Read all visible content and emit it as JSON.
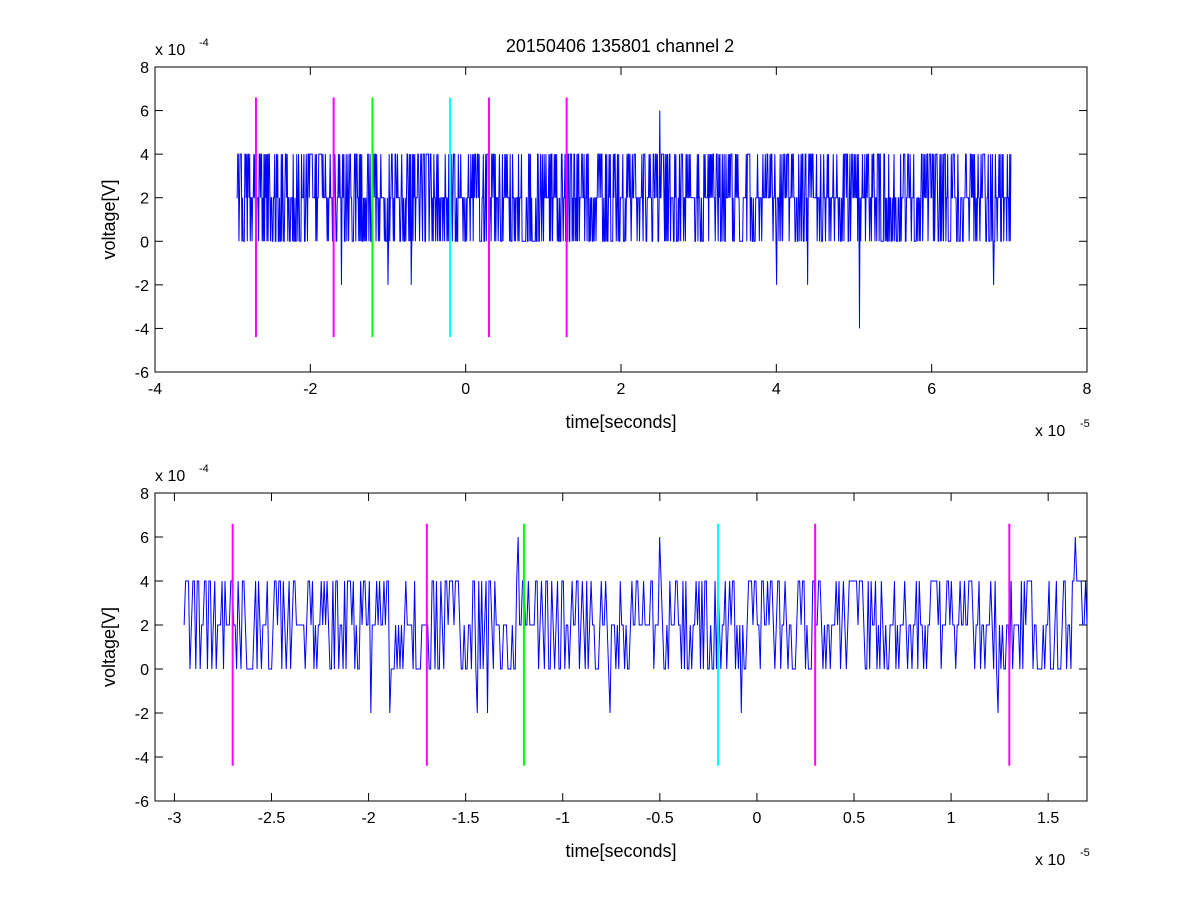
{
  "figure": {
    "title": "20150406 135801 channel 2"
  },
  "chart_data": [
    {
      "type": "line",
      "title": "20150406 135801 channel 2",
      "xlabel": "time[seconds]",
      "ylabel": "voltage[V]",
      "x_multiplier_label": "x 10",
      "x_multiplier_exponent": "-5",
      "y_multiplier_label": "x 10",
      "y_multiplier_exponent": "-4",
      "x_scale": 1e-05,
      "y_scale": 0.0001,
      "xlim": [
        -4,
        8
      ],
      "ylim": [
        -6,
        8
      ],
      "xticks": [
        -4,
        -2,
        0,
        2,
        4,
        6,
        8
      ],
      "xtick_labels": [
        "-4",
        "-2",
        "0",
        "2",
        "4",
        "6",
        "8"
      ],
      "yticks": [
        -6,
        -4,
        -2,
        0,
        2,
        4,
        6,
        8
      ],
      "ytick_labels": [
        "-6",
        "-4",
        "-2",
        "0",
        "2",
        "4",
        "6",
        "8"
      ],
      "grid": false,
      "series": [
        {
          "color": "#0000ff",
          "x_start": -2.95,
          "x_end": 7.02,
          "quantization_step": 2,
          "dominant_levels": [
            0,
            2,
            4
          ],
          "notable_excursions": [
            {
              "x": -1.6,
              "y": -2
            },
            {
              "x": -1.0,
              "y": -2
            },
            {
              "x": -0.7,
              "y": -2
            },
            {
              "x": -1.2,
              "y": 6
            },
            {
              "x": 2.5,
              "y": 6
            },
            {
              "x": 4.0,
              "y": -2
            },
            {
              "x": 4.4,
              "y": -2
            },
            {
              "x": 5.07,
              "y": -4
            },
            {
              "x": 6.8,
              "y": -2
            }
          ]
        }
      ],
      "vertical_markers": [
        {
          "x": -2.7,
          "color": "#ff00ff",
          "y_from": -4.4,
          "y_to": 6.6
        },
        {
          "x": -1.7,
          "color": "#ff00ff",
          "y_from": -4.4,
          "y_to": 6.6
        },
        {
          "x": -1.2,
          "color": "#00ff00",
          "y_from": -4.4,
          "y_to": 6.6
        },
        {
          "x": -0.2,
          "color": "#00ffff",
          "y_from": -4.4,
          "y_to": 6.6
        },
        {
          "x": 0.3,
          "color": "#ff00ff",
          "y_from": -4.4,
          "y_to": 6.6
        },
        {
          "x": 1.3,
          "color": "#ff00ff",
          "y_from": -4.4,
          "y_to": 6.6
        }
      ]
    },
    {
      "type": "line",
      "title": "",
      "xlabel": "time[seconds]",
      "ylabel": "voltage[V]",
      "x_multiplier_label": "x 10",
      "x_multiplier_exponent": "-5",
      "y_multiplier_label": "x 10",
      "y_multiplier_exponent": "-4",
      "x_scale": 1e-05,
      "y_scale": 0.0001,
      "xlim": [
        -3.1,
        1.7
      ],
      "ylim": [
        -6,
        8
      ],
      "xticks": [
        -3,
        -2.5,
        -2,
        -1.5,
        -1,
        -0.5,
        0,
        0.5,
        1,
        1.5
      ],
      "xtick_labels": [
        "-3",
        "-2.5",
        "-2",
        "-1.5",
        "-1",
        "-0.5",
        "0",
        "0.5",
        "1",
        "1.5"
      ],
      "yticks": [
        -6,
        -4,
        -2,
        0,
        2,
        4,
        6,
        8
      ],
      "ytick_labels": [
        "-6",
        "-4",
        "-2",
        "0",
        "2",
        "4",
        "6",
        "8"
      ],
      "grid": false,
      "series": [
        {
          "color": "#0000ff",
          "x_start": -2.95,
          "x_end": 1.7,
          "quantization_step": 2,
          "dominant_levels": [
            0,
            2,
            4
          ],
          "notable_excursions": [
            {
              "x": -1.99,
              "y": -2
            },
            {
              "x": -1.89,
              "y": -2
            },
            {
              "x": -1.44,
              "y": -2
            },
            {
              "x": -1.39,
              "y": -2
            },
            {
              "x": -1.23,
              "y": 6
            },
            {
              "x": -0.76,
              "y": -2
            },
            {
              "x": -0.5,
              "y": 6
            },
            {
              "x": -0.08,
              "y": -2
            },
            {
              "x": 1.24,
              "y": -2
            },
            {
              "x": 1.64,
              "y": 6
            }
          ]
        }
      ],
      "vertical_markers": [
        {
          "x": -2.7,
          "color": "#ff00ff",
          "y_from": -4.4,
          "y_to": 6.6
        },
        {
          "x": -1.7,
          "color": "#ff00ff",
          "y_from": -4.4,
          "y_to": 6.6
        },
        {
          "x": -1.2,
          "color": "#00ff00",
          "y_from": -4.4,
          "y_to": 6.6
        },
        {
          "x": -0.2,
          "color": "#00ffff",
          "y_from": -4.4,
          "y_to": 6.6
        },
        {
          "x": 0.3,
          "color": "#ff00ff",
          "y_from": -4.4,
          "y_to": 6.6
        },
        {
          "x": 1.3,
          "color": "#ff00ff",
          "y_from": -4.4,
          "y_to": 6.6
        }
      ]
    }
  ]
}
